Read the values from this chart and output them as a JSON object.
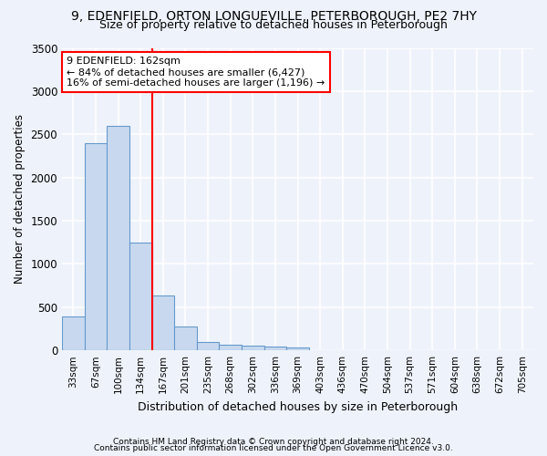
{
  "title1": "9, EDENFIELD, ORTON LONGUEVILLE, PETERBOROUGH, PE2 7HY",
  "title2": "Size of property relative to detached houses in Peterborough",
  "xlabel": "Distribution of detached houses by size in Peterborough",
  "ylabel": "Number of detached properties",
  "footnote1": "Contains HM Land Registry data © Crown copyright and database right 2024.",
  "footnote2": "Contains public sector information licensed under the Open Government Licence v3.0.",
  "bar_labels": [
    "33sqm",
    "67sqm",
    "100sqm",
    "134sqm",
    "167sqm",
    "201sqm",
    "235sqm",
    "268sqm",
    "302sqm",
    "336sqm",
    "369sqm",
    "403sqm",
    "436sqm",
    "470sqm",
    "504sqm",
    "537sqm",
    "571sqm",
    "604sqm",
    "638sqm",
    "672sqm",
    "705sqm"
  ],
  "bar_values": [
    390,
    2400,
    2600,
    1250,
    640,
    280,
    100,
    60,
    55,
    45,
    30,
    0,
    0,
    0,
    0,
    0,
    0,
    0,
    0,
    0,
    0
  ],
  "bar_color": "#c8d9ef",
  "bar_edge_color": "#6699cc",
  "vline_x": 3.5,
  "vline_color": "red",
  "annotation_text": "9 EDENFIELD: 162sqm\n← 84% of detached houses are smaller (6,427)\n16% of semi-detached houses are larger (1,196) →",
  "annotation_box_color": "white",
  "annotation_box_edge": "red",
  "ylim": [
    0,
    3500
  ],
  "yticks": [
    0,
    500,
    1000,
    1500,
    2000,
    2500,
    3000,
    3500
  ],
  "background_color": "#eef3fb",
  "grid_color": "#d0daea",
  "title_fontsize": 10,
  "subtitle_fontsize": 9,
  "annot_fontsize": 8
}
